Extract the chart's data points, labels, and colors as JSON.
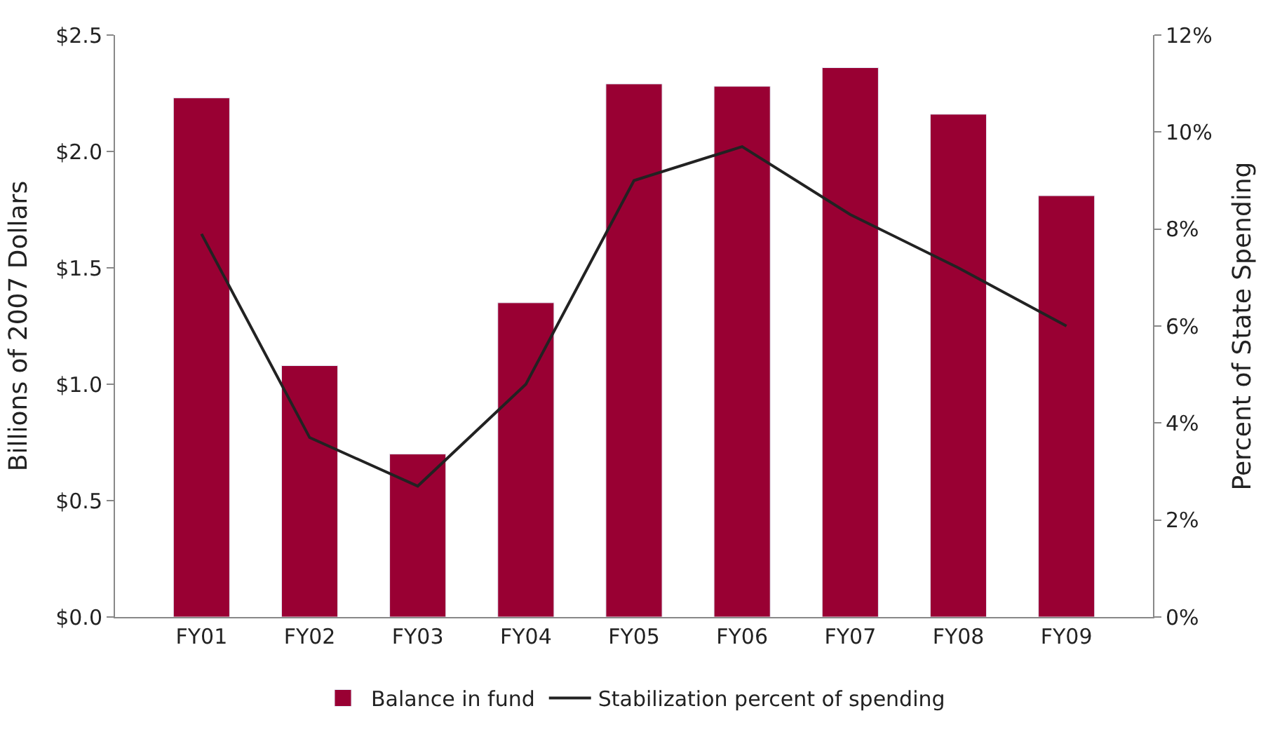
{
  "chart_data": {
    "type": "bar",
    "ylabel": "Billions of 2007 Dollars",
    "y2label": "Percent of State Spending",
    "categories": [
      "FY01",
      "FY02",
      "FY03",
      "FY04",
      "FY05",
      "FY06",
      "FY07",
      "FY08",
      "FY09"
    ],
    "series": [
      {
        "name": "Balance in fund",
        "color": "#990033",
        "values": [
          2.23,
          1.08,
          0.7,
          1.35,
          2.29,
          2.28,
          2.36,
          2.16,
          1.81
        ]
      },
      {
        "name": "Stabilization percent of spending",
        "type": "line",
        "axis": "y2",
        "color": "#222222",
        "values": [
          7.9,
          3.7,
          2.7,
          4.8,
          9.0,
          9.7,
          8.3,
          7.2,
          6.0
        ]
      }
    ],
    "ylim": [
      0,
      2.5
    ],
    "yticks": [
      {
        "value": 0,
        "label": "$0.0"
      },
      {
        "value": 0.5,
        "label": "$0.5"
      },
      {
        "value": 1,
        "label": "$1.0"
      },
      {
        "value": 1.5,
        "label": "$1.5"
      },
      {
        "value": 2,
        "label": "$2.0"
      },
      {
        "value": 2.5,
        "label": "$2.5"
      }
    ],
    "y2lim": [
      0,
      12
    ],
    "y2ticks": [
      {
        "value": 0,
        "label": "0%"
      },
      {
        "value": 2,
        "label": "2%"
      },
      {
        "value": 4,
        "label": "4%"
      },
      {
        "value": 6,
        "label": "6%"
      },
      {
        "value": 8,
        "label": "8%"
      },
      {
        "value": 10,
        "label": "10%"
      },
      {
        "value": 12,
        "label": "12%"
      }
    ],
    "legend": "bottom",
    "marker": "none",
    "line_style": "solid"
  }
}
